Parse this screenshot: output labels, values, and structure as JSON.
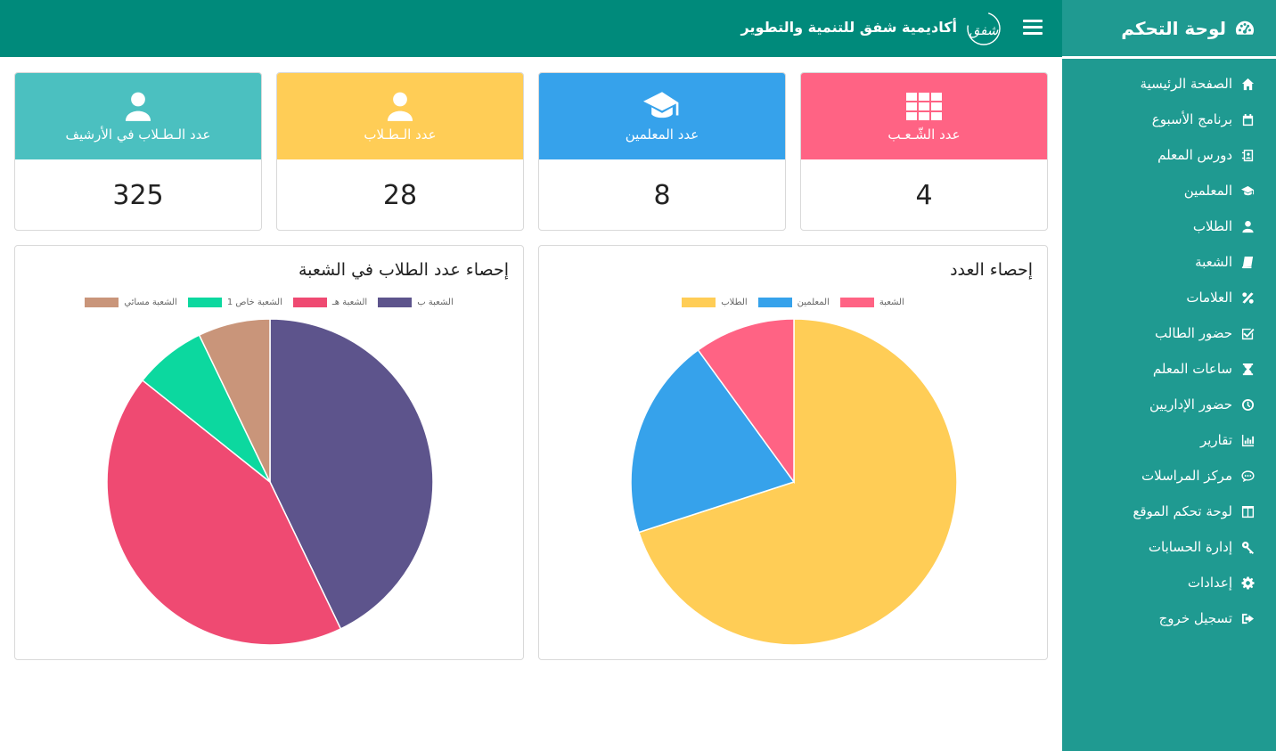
{
  "sidebar": {
    "title": "لوحة التحكم",
    "items": [
      {
        "label": "الصفحة الرئيسية",
        "icon": "home-icon"
      },
      {
        "label": "برنامج الأسبوع",
        "icon": "calendar-icon"
      },
      {
        "label": "دورس المعلم",
        "icon": "contact-book-icon"
      },
      {
        "label": "المعلمين",
        "icon": "graduation-cap-icon"
      },
      {
        "label": "الطلاب",
        "icon": "user-icon"
      },
      {
        "label": "الشعبة",
        "icon": "book-icon"
      },
      {
        "label": "العلامات",
        "icon": "percent-icon"
      },
      {
        "label": "حضور الطالب",
        "icon": "check-square-icon"
      },
      {
        "label": "ساعات المعلم",
        "icon": "hourglass-icon"
      },
      {
        "label": "حضور الإداريين",
        "icon": "clock-icon"
      },
      {
        "label": "تقارير",
        "icon": "bar-chart-icon"
      },
      {
        "label": "مركز المراسلات",
        "icon": "comment-icon"
      },
      {
        "label": "لوحة تحكم الموقع",
        "icon": "columns-icon"
      },
      {
        "label": "إدارة الحسابات",
        "icon": "key-icon"
      },
      {
        "label": "إعدادات",
        "icon": "gear-icon"
      },
      {
        "label": "تسجيل خروج",
        "icon": "sign-out-icon"
      }
    ]
  },
  "header": {
    "brand_name": "أكاديمية شفق للتنمية والتطوير",
    "logo_text": "شفق"
  },
  "cards": [
    {
      "label": "عدد الشّـعـب",
      "value": "4",
      "color": "#ff6384",
      "icon": "grid-icon"
    },
    {
      "label": "عدد المعلمين",
      "value": "8",
      "color": "#36a2eb",
      "icon": "graduation-cap-icon"
    },
    {
      "label": "عدد الـطـلاب",
      "value": "28",
      "color": "#ffcd56",
      "icon": "user-icon"
    },
    {
      "label": "عدد الـطـلاب في الأرشيف",
      "value": "325",
      "color": "#4bc0c0",
      "icon": "user-icon"
    }
  ],
  "chart_data": [
    {
      "type": "pie",
      "title": "إحصاء العدد",
      "categories": [
        "الطلاب",
        "المعلمين",
        "الشعبة"
      ],
      "values": [
        28,
        8,
        4
      ],
      "colors": [
        "#ffcd56",
        "#36a2eb",
        "#ff6384"
      ],
      "legend_order": [
        "الشعبة",
        "المعلمين",
        "الطلاب"
      ],
      "legend_position": "top"
    },
    {
      "type": "pie",
      "title": "إحصاء عدد الطلاب في الشعبة",
      "categories": [
        "الشعبة ب",
        "الشعبة هـ",
        "الشعبة خاص 1",
        "الشعبة مسائي"
      ],
      "values": [
        12,
        12,
        2,
        2
      ],
      "colors": [
        "#5d548c",
        "#ef4a72",
        "#0cd89f",
        "#c9957a"
      ],
      "legend_order": [
        "الشعبة ب",
        "الشعبة هـ",
        "الشعبة خاص 1",
        "الشعبة مسائي"
      ],
      "legend_position": "top"
    }
  ]
}
